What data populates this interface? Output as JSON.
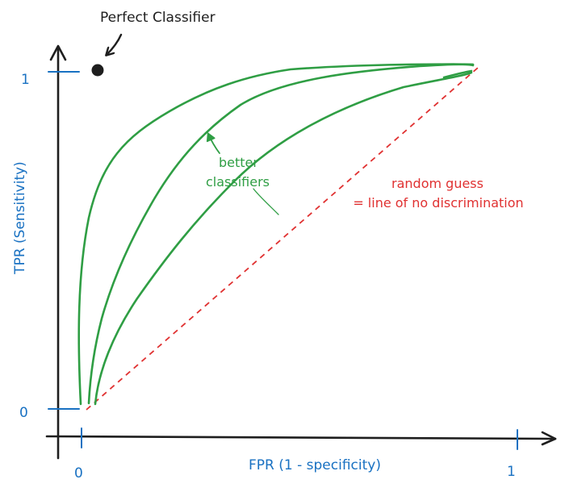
{
  "title_annotation": "Perfect Classifier",
  "y_axis": {
    "label": "TPR (Sensitivity)",
    "tick_top": "1",
    "tick_bottom": "0"
  },
  "x_axis": {
    "label": "FPR (1 - specificity)",
    "tick_left": "0",
    "tick_right": "1"
  },
  "better_label": [
    "better",
    "classifiers"
  ],
  "random_label": [
    "random guess",
    "= line of no discrimination"
  ],
  "colors": {
    "axis": "#1e1e1e",
    "ticks": "#1971c2",
    "curves": "#2f9e44",
    "random_guess": "#e03131"
  }
}
